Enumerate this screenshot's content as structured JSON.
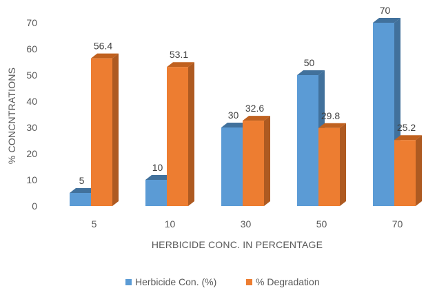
{
  "chart_data": {
    "type": "bar",
    "style": "3d-clustered-column",
    "title": "",
    "xlabel": "HERBICIDE CONC. IN PERCENTAGE",
    "ylabel": "% CONCNTRATIONS",
    "categories": [
      "5",
      "10",
      "30",
      "50",
      "70"
    ],
    "ylim": [
      0,
      70
    ],
    "yticks": [
      0,
      10,
      20,
      30,
      40,
      50,
      60,
      70
    ],
    "grid": false,
    "legend": "bottom-center",
    "series": [
      {
        "name": "Herbicide Con. (%)",
        "values": [
          5,
          10,
          30,
          50,
          70
        ],
        "labels": [
          "5",
          "10",
          "30",
          "50",
          "70"
        ],
        "color": "#5b9bd5",
        "side_color": "#41719c",
        "top_color": "#41719c"
      },
      {
        "name": "% Degradation",
        "values": [
          56.4,
          53.1,
          32.6,
          29.8,
          25.2
        ],
        "labels": [
          "56.4",
          "53.1",
          "32.6",
          "29.8",
          "25.2"
        ],
        "color": "#ed7d31",
        "side_color": "#ae5a21",
        "top_color": "#c0611f"
      }
    ]
  }
}
